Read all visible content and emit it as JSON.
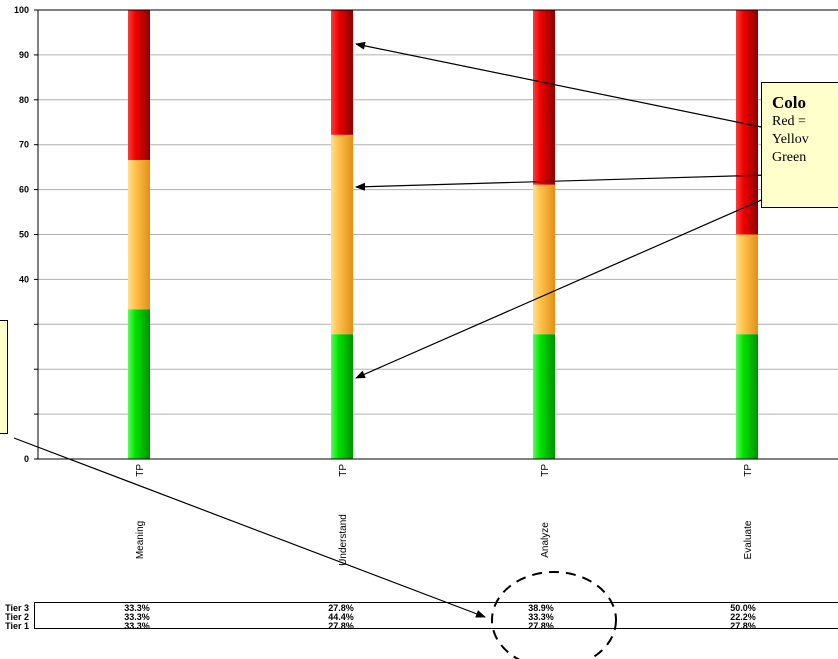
{
  "chart_data": {
    "type": "bar",
    "stacked": true,
    "categories": [
      "Meaning",
      "Understand",
      "Analyze",
      "Evaluate"
    ],
    "bar_label": "TP",
    "ylim": [
      0,
      100
    ],
    "yticks": [
      0,
      10,
      20,
      30,
      40,
      50,
      60,
      70,
      80,
      90,
      100
    ],
    "ytick_labels": [
      "0",
      "",
      "",
      "",
      "40",
      "50",
      "60",
      "70",
      "80",
      "90",
      "100"
    ],
    "grid": true,
    "series": [
      {
        "name": "Tier 1",
        "color": "#00cc00",
        "values": [
          33.3,
          27.8,
          27.8,
          27.8
        ]
      },
      {
        "name": "Tier 2",
        "color": "#ffbb44",
        "values": [
          33.3,
          44.4,
          33.3,
          22.2
        ]
      },
      {
        "name": "Tier 3",
        "color": "#cc0000",
        "values": [
          33.3,
          27.8,
          38.9,
          50.0
        ]
      }
    ]
  },
  "callout": {
    "title": "Colo",
    "lines": [
      "Red =",
      "Yellov",
      "Green"
    ]
  },
  "tier_table": {
    "rows": [
      {
        "label": "Tier 3",
        "cells": [
          "33.3%",
          "27.8%",
          "38.9%",
          "50.0%"
        ]
      },
      {
        "label": "Tier 2",
        "cells": [
          "33.3%",
          "44.4%",
          "33.3%",
          "22.2%"
        ]
      },
      {
        "label": "Tier 1",
        "cells": [
          "33.3%",
          "27.8%",
          "27.8%",
          "27.8%"
        ]
      }
    ]
  }
}
